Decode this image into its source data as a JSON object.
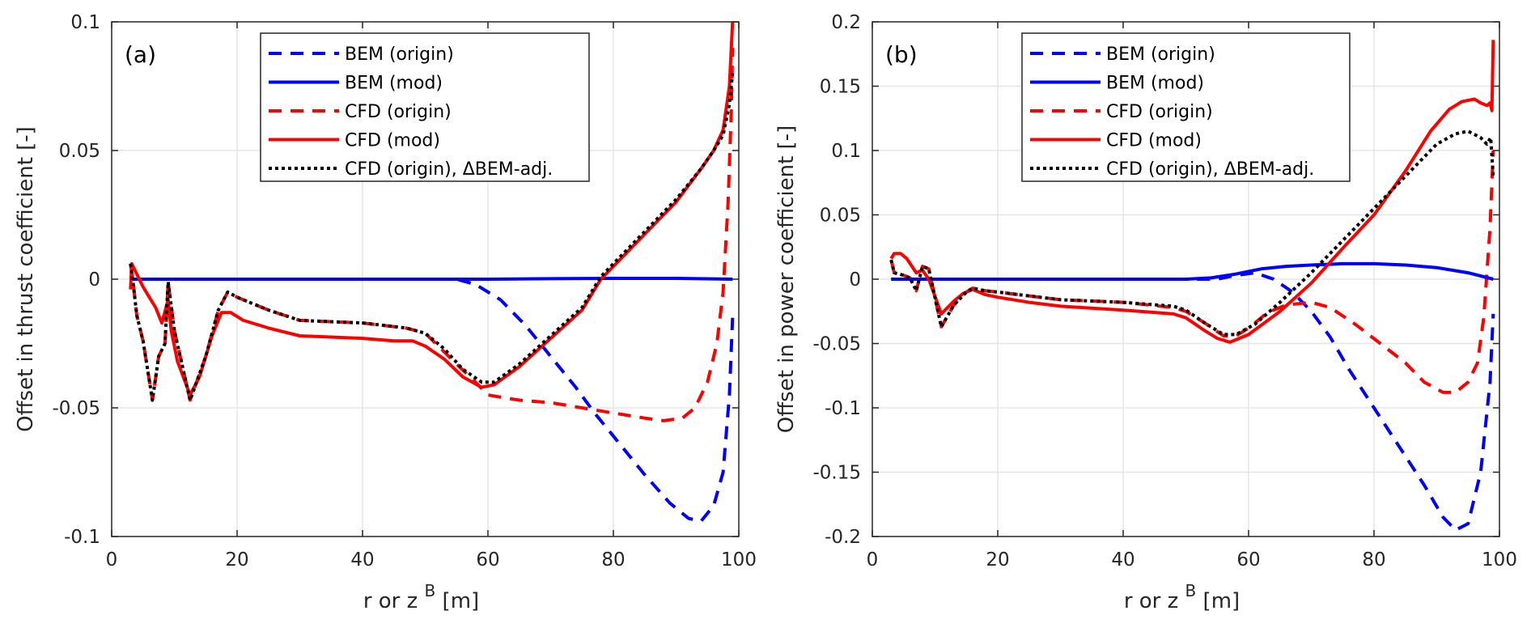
{
  "chart_data": [
    {
      "type": "line",
      "panel_label": "(a)",
      "title": "",
      "xlabel": "r or z",
      "xlabel_superscript": "B",
      "xlabel_unit": "[m]",
      "ylabel": "Offset in thrust coefficient [-]",
      "xlim": [
        0,
        100
      ],
      "ylim": [
        -0.1,
        0.1
      ],
      "xticks": [
        0,
        20,
        40,
        60,
        80,
        100
      ],
      "xtick_labels": [
        "0",
        "20",
        "40",
        "60",
        "80",
        "100"
      ],
      "yticks": [
        -0.1,
        -0.05,
        0,
        0.05,
        0.1
      ],
      "ytick_labels": [
        "-0.1",
        "-0.05",
        "0",
        "0.05",
        "0.1"
      ],
      "grid": true,
      "legend_position": "top-center",
      "series": [
        {
          "name": "BEM (origin)",
          "color": "#0000ff",
          "style": "dashed",
          "x": [
            3,
            10,
            20,
            30,
            40,
            50,
            55,
            58,
            62,
            66,
            70,
            74,
            77,
            81,
            85,
            89,
            92,
            94,
            96,
            97.5,
            98.5,
            99
          ],
          "y": [
            0,
            0,
            0,
            0,
            0,
            0,
            0,
            -0.002,
            -0.008,
            -0.018,
            -0.03,
            -0.042,
            -0.052,
            -0.064,
            -0.076,
            -0.087,
            -0.093,
            -0.094,
            -0.088,
            -0.075,
            -0.045,
            -0.015
          ]
        },
        {
          "name": "BEM (mod)",
          "color": "#0000ff",
          "style": "solid",
          "x": [
            3,
            10,
            20,
            30,
            40,
            50,
            60,
            70,
            80,
            90,
            99
          ],
          "y": [
            0,
            0,
            0,
            0,
            0,
            0,
            0,
            0.0002,
            0.0003,
            0.0003,
            0
          ]
        },
        {
          "name": "CFD (origin)",
          "color": "#ff0000",
          "style": "dashed",
          "x": [
            3,
            3.5,
            4,
            5,
            6.5,
            7.5,
            8.5,
            9,
            10,
            12.5,
            15,
            17,
            18.5,
            20,
            25,
            30,
            40,
            47,
            50,
            55,
            58,
            60,
            65,
            70,
            75,
            80,
            85,
            88,
            91,
            93,
            95,
            96.5,
            97.5,
            98.3,
            98.8,
            99
          ],
          "y": [
            0.006,
            -0.003,
            -0.014,
            -0.024,
            -0.047,
            -0.03,
            -0.025,
            -0.001,
            -0.02,
            -0.047,
            -0.03,
            -0.012,
            -0.005,
            -0.007,
            -0.012,
            -0.016,
            -0.017,
            -0.019,
            -0.021,
            -0.033,
            -0.04,
            -0.045,
            -0.047,
            -0.048,
            -0.05,
            -0.052,
            -0.054,
            -0.055,
            -0.054,
            -0.05,
            -0.04,
            -0.025,
            -0.005,
            0.03,
            0.065,
            0.09
          ]
        },
        {
          "name": "CFD (mod)",
          "color": "#ff0000",
          "style": "solid",
          "x": [
            3,
            3.2,
            4,
            5,
            6,
            7,
            8,
            9,
            9.5,
            10.5,
            12.5,
            14,
            16,
            17.5,
            19,
            21,
            25,
            30,
            40,
            45,
            48,
            50,
            53,
            56,
            59,
            61,
            65,
            70,
            75,
            78,
            82,
            86,
            90,
            94,
            96,
            97.5,
            98.5,
            99
          ],
          "y": [
            -0.004,
            0.006,
            0.002,
            -0.003,
            -0.007,
            -0.011,
            -0.017,
            -0.008,
            -0.02,
            -0.032,
            -0.045,
            -0.038,
            -0.022,
            -0.013,
            -0.013,
            -0.016,
            -0.019,
            -0.022,
            -0.023,
            -0.024,
            -0.024,
            -0.026,
            -0.031,
            -0.038,
            -0.042,
            -0.041,
            -0.034,
            -0.023,
            -0.012,
            0,
            0.01,
            0.02,
            0.03,
            0.043,
            0.05,
            0.058,
            0.075,
            0.1
          ]
        },
        {
          "name": "CFD (origin),   ΔBEM-adj.",
          "color": "#000000",
          "style": "dotted",
          "x": [
            3,
            3.5,
            4,
            5,
            6.5,
            7.5,
            8.5,
            9,
            10,
            12.5,
            15,
            17,
            18.5,
            20,
            25,
            30,
            40,
            47,
            50,
            53,
            56,
            59,
            61,
            65,
            70,
            75,
            78,
            82,
            86,
            90,
            94,
            96,
            97.5,
            98.5,
            99
          ],
          "y": [
            0.006,
            -0.003,
            -0.014,
            -0.024,
            -0.047,
            -0.03,
            -0.025,
            -0.001,
            -0.02,
            -0.047,
            -0.03,
            -0.012,
            -0.005,
            -0.007,
            -0.012,
            -0.016,
            -0.017,
            -0.019,
            -0.021,
            -0.027,
            -0.035,
            -0.04,
            -0.04,
            -0.033,
            -0.022,
            -0.011,
            0.001,
            0.011,
            0.021,
            0.031,
            0.043,
            0.05,
            0.056,
            0.068,
            0.08
          ]
        }
      ]
    },
    {
      "type": "line",
      "panel_label": "(b)",
      "title": "",
      "xlabel": "r or z",
      "xlabel_superscript": "B",
      "xlabel_unit": "[m]",
      "ylabel": "Offset in power coefficient [-]",
      "xlim": [
        0,
        100
      ],
      "ylim": [
        -0.2,
        0.2
      ],
      "xticks": [
        0,
        20,
        40,
        60,
        80,
        100
      ],
      "xtick_labels": [
        "0",
        "20",
        "40",
        "60",
        "80",
        "100"
      ],
      "yticks": [
        -0.2,
        -0.15,
        -0.1,
        -0.05,
        0,
        0.05,
        0.1,
        0.15,
        0.2
      ],
      "ytick_labels": [
        "-0.2",
        "-0.15",
        "-0.1",
        "-0.05",
        "0",
        "0.05",
        "0.1",
        "0.15",
        "0.2"
      ],
      "grid": true,
      "legend_position": "top-center",
      "series": [
        {
          "name": "BEM (origin)",
          "color": "#0000ff",
          "style": "dashed",
          "x": [
            3,
            10,
            20,
            30,
            40,
            50,
            55,
            58,
            61,
            64,
            67,
            70,
            73,
            76,
            80,
            84,
            88,
            91,
            93,
            95,
            97,
            98.5,
            99
          ],
          "y": [
            0,
            0,
            0,
            0,
            0,
            0,
            0,
            0.003,
            0.005,
            0,
            -0.01,
            -0.025,
            -0.045,
            -0.07,
            -0.1,
            -0.13,
            -0.16,
            -0.185,
            -0.195,
            -0.19,
            -0.15,
            -0.08,
            -0.027
          ]
        },
        {
          "name": "BEM (mod)",
          "color": "#0000ff",
          "style": "solid",
          "x": [
            3,
            10,
            20,
            30,
            40,
            50,
            54,
            58,
            62,
            66,
            70,
            75,
            80,
            85,
            90,
            95,
            99
          ],
          "y": [
            0,
            0,
            0,
            0,
            0,
            0,
            0.001,
            0.004,
            0.008,
            0.01,
            0.011,
            0.012,
            0.012,
            0.011,
            0.009,
            0.005,
            0
          ]
        },
        {
          "name": "CFD (origin)",
          "color": "#ff0000",
          "style": "dashed",
          "x": [
            3,
            3.5,
            5,
            6,
            7,
            8,
            9,
            11,
            13,
            15,
            16,
            18,
            20,
            25,
            30,
            40,
            48,
            50,
            53,
            56,
            58,
            60,
            63,
            66,
            70,
            73,
            77,
            81,
            85,
            88,
            91,
            93,
            95,
            96.5,
            97.5,
            98.5,
            99
          ],
          "y": [
            0.015,
            0.005,
            0.003,
            0.001,
            -0.009,
            0.01,
            0.008,
            -0.037,
            -0.02,
            -0.01,
            -0.007,
            -0.009,
            -0.01,
            -0.013,
            -0.016,
            -0.018,
            -0.022,
            -0.025,
            -0.034,
            -0.044,
            -0.044,
            -0.038,
            -0.026,
            -0.02,
            -0.018,
            -0.022,
            -0.035,
            -0.05,
            -0.065,
            -0.08,
            -0.088,
            -0.088,
            -0.08,
            -0.065,
            -0.03,
            0.04,
            0.1
          ]
        },
        {
          "name": "CFD (mod)",
          "color": "#ff0000",
          "style": "solid",
          "x": [
            3,
            3.5,
            4.5,
            5.5,
            7,
            8,
            9,
            11,
            13,
            14.5,
            16,
            18,
            20,
            25,
            30,
            40,
            48,
            50,
            53,
            55,
            57,
            60,
            65,
            70,
            75,
            80,
            85,
            89,
            92,
            94,
            96,
            97,
            98,
            98.5,
            98.8,
            99
          ],
          "y": [
            0.016,
            0.02,
            0.02,
            0.016,
            0.005,
            0.007,
            0.0,
            -0.027,
            -0.017,
            -0.011,
            -0.008,
            -0.012,
            -0.014,
            -0.018,
            -0.021,
            -0.024,
            -0.027,
            -0.03,
            -0.04,
            -0.046,
            -0.049,
            -0.043,
            -0.025,
            -0.003,
            0.024,
            0.05,
            0.084,
            0.115,
            0.132,
            0.138,
            0.14,
            0.137,
            0.135,
            0.137,
            0.131,
            0.186
          ]
        },
        {
          "name": "CFD (origin),   ΔBEM-adj.",
          "color": "#000000",
          "style": "dotted",
          "x": [
            3,
            3.5,
            5,
            6,
            7,
            8,
            9,
            11,
            13,
            15,
            16,
            18,
            20,
            25,
            30,
            40,
            48,
            50,
            53,
            56,
            58,
            61,
            65,
            70,
            75,
            80,
            85,
            90,
            93,
            95,
            97,
            98,
            98.6,
            99
          ],
          "y": [
            0.015,
            0.005,
            0.003,
            0.001,
            -0.009,
            0.01,
            0.008,
            -0.037,
            -0.02,
            -0.01,
            -0.007,
            -0.009,
            -0.01,
            -0.013,
            -0.016,
            -0.018,
            -0.021,
            -0.024,
            -0.034,
            -0.043,
            -0.043,
            -0.035,
            -0.018,
            0.005,
            0.03,
            0.055,
            0.08,
            0.105,
            0.113,
            0.115,
            0.11,
            0.105,
            0.11,
            0.08
          ]
        }
      ]
    }
  ]
}
